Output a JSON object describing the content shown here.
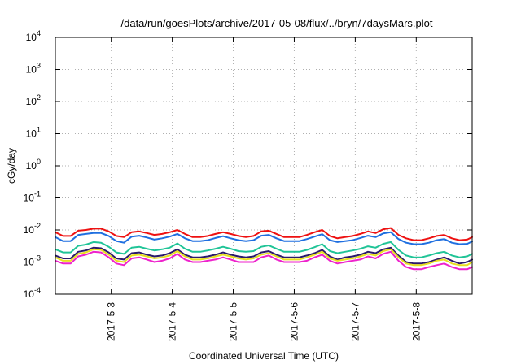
{
  "chart_data": {
    "type": "line",
    "title": "/data/run/goesPlots/archive/2017-05-08/flux/../bryn/7daysMars.plot",
    "xlabel": "Coordinated Universal Time (UTC)",
    "ylabel": "cGy/day",
    "y_scale": "log",
    "ylim": [
      0.0001,
      10000
    ],
    "xlim": [
      "2017-05-02T02:00",
      "2017-05-08T22:00"
    ],
    "grid": true,
    "x_ticks": [
      {
        "value": "2017-05-03T00:00",
        "label": "2017-5-3"
      },
      {
        "value": "2017-05-04T00:00",
        "label": "2017-5-4"
      },
      {
        "value": "2017-05-05T00:00",
        "label": "2017-5-5"
      },
      {
        "value": "2017-05-06T00:00",
        "label": "2017-5-6"
      },
      {
        "value": "2017-05-07T00:00",
        "label": "2017-5-7"
      },
      {
        "value": "2017-05-08T00:00",
        "label": "2017-5-8"
      }
    ],
    "y_ticks": [
      {
        "value": 0.0001,
        "base": "10",
        "exp": "-4"
      },
      {
        "value": 0.001,
        "base": "10",
        "exp": "-3"
      },
      {
        "value": 0.01,
        "base": "10",
        "exp": "-2"
      },
      {
        "value": 0.1,
        "base": "10",
        "exp": "-1"
      },
      {
        "value": 1,
        "base": "10",
        "exp": "0"
      },
      {
        "value": 10,
        "base": "10",
        "exp": "1"
      },
      {
        "value": 100,
        "base": "10",
        "exp": "2"
      },
      {
        "value": 1000,
        "base": "10",
        "exp": "3"
      },
      {
        "value": 10000,
        "base": "10",
        "exp": "4"
      }
    ],
    "x": [
      "2017-05-02T02:00",
      "2017-05-02T05:00",
      "2017-05-02T08:00",
      "2017-05-02T11:00",
      "2017-05-02T14:00",
      "2017-05-02T17:00",
      "2017-05-02T20:00",
      "2017-05-02T23:00",
      "2017-05-03T02:00",
      "2017-05-03T05:00",
      "2017-05-03T08:00",
      "2017-05-03T11:00",
      "2017-05-03T14:00",
      "2017-05-03T17:00",
      "2017-05-03T20:00",
      "2017-05-03T23:00",
      "2017-05-04T02:00",
      "2017-05-04T05:00",
      "2017-05-04T08:00",
      "2017-05-04T11:00",
      "2017-05-04T14:00",
      "2017-05-04T17:00",
      "2017-05-04T20:00",
      "2017-05-04T23:00",
      "2017-05-05T02:00",
      "2017-05-05T05:00",
      "2017-05-05T08:00",
      "2017-05-05T11:00",
      "2017-05-05T14:00",
      "2017-05-05T17:00",
      "2017-05-05T20:00",
      "2017-05-05T23:00",
      "2017-05-06T02:00",
      "2017-05-06T05:00",
      "2017-05-06T08:00",
      "2017-05-06T11:00",
      "2017-05-06T14:00",
      "2017-05-06T17:00",
      "2017-05-06T20:00",
      "2017-05-06T23:00",
      "2017-05-07T02:00",
      "2017-05-07T05:00",
      "2017-05-07T08:00",
      "2017-05-07T11:00",
      "2017-05-07T14:00",
      "2017-05-07T17:00",
      "2017-05-07T20:00",
      "2017-05-07T23:00",
      "2017-05-08T02:00",
      "2017-05-08T05:00",
      "2017-05-08T08:00",
      "2017-05-08T11:00",
      "2017-05-08T14:00",
      "2017-05-08T17:00",
      "2017-05-08T20:00",
      "2017-05-08T22:00"
    ],
    "series": [
      {
        "color": "#ee1111",
        "values": [
          0.0085,
          0.0065,
          0.0065,
          0.0095,
          0.01,
          0.011,
          0.011,
          0.009,
          0.0065,
          0.006,
          0.0085,
          0.009,
          0.008,
          0.007,
          0.0075,
          0.0085,
          0.01,
          0.0075,
          0.006,
          0.006,
          0.0065,
          0.0075,
          0.0085,
          0.0075,
          0.0065,
          0.006,
          0.0065,
          0.009,
          0.0095,
          0.0075,
          0.006,
          0.006,
          0.006,
          0.007,
          0.0085,
          0.01,
          0.0065,
          0.0055,
          0.006,
          0.0065,
          0.0075,
          0.009,
          0.008,
          0.0105,
          0.0115,
          0.007,
          0.0055,
          0.0048,
          0.0048,
          0.0055,
          0.0065,
          0.007,
          0.0055,
          0.0048,
          0.005,
          0.006
        ]
      },
      {
        "color": "#1f6fe0",
        "values": [
          0.006,
          0.0045,
          0.0045,
          0.007,
          0.0075,
          0.008,
          0.008,
          0.0065,
          0.0045,
          0.004,
          0.0062,
          0.0066,
          0.0058,
          0.005,
          0.0055,
          0.0062,
          0.0075,
          0.0055,
          0.0045,
          0.0045,
          0.0048,
          0.0056,
          0.0064,
          0.0055,
          0.0048,
          0.0045,
          0.0048,
          0.0066,
          0.007,
          0.0055,
          0.0045,
          0.0045,
          0.0045,
          0.0052,
          0.0062,
          0.0074,
          0.0048,
          0.0042,
          0.0045,
          0.0048,
          0.0056,
          0.0066,
          0.006,
          0.0078,
          0.0085,
          0.0052,
          0.004,
          0.0036,
          0.0036,
          0.004,
          0.0048,
          0.0052,
          0.004,
          0.0036,
          0.0037,
          0.0044
        ]
      },
      {
        "color": "#20c497",
        "values": [
          0.0025,
          0.002,
          0.002,
          0.0032,
          0.0035,
          0.0042,
          0.004,
          0.003,
          0.002,
          0.0018,
          0.0028,
          0.003,
          0.0026,
          0.0023,
          0.0025,
          0.0028,
          0.0038,
          0.0026,
          0.0021,
          0.0021,
          0.0023,
          0.0026,
          0.003,
          0.0026,
          0.0022,
          0.0021,
          0.0022,
          0.003,
          0.0033,
          0.0026,
          0.0021,
          0.0021,
          0.0021,
          0.0024,
          0.0029,
          0.0036,
          0.0022,
          0.0019,
          0.0021,
          0.0023,
          0.0026,
          0.0031,
          0.0028,
          0.0037,
          0.0042,
          0.0024,
          0.0016,
          0.0014,
          0.0014,
          0.0016,
          0.0019,
          0.0021,
          0.0016,
          0.0014,
          0.0015,
          0.0018
        ]
      },
      {
        "color": "#2b1a6b",
        "values": [
          0.0016,
          0.0013,
          0.0013,
          0.0021,
          0.0023,
          0.0028,
          0.0027,
          0.002,
          0.0013,
          0.0012,
          0.0019,
          0.002,
          0.0017,
          0.0015,
          0.0016,
          0.0019,
          0.0025,
          0.0017,
          0.0014,
          0.0014,
          0.0015,
          0.0017,
          0.002,
          0.0017,
          0.0015,
          0.0014,
          0.0015,
          0.002,
          0.0022,
          0.0017,
          0.0014,
          0.0014,
          0.0014,
          0.0016,
          0.0019,
          0.0024,
          0.0015,
          0.0012,
          0.0014,
          0.0015,
          0.0017,
          0.0021,
          0.0019,
          0.0025,
          0.0028,
          0.0016,
          0.001,
          0.0009,
          0.0009,
          0.001,
          0.0012,
          0.0014,
          0.0011,
          0.0009,
          0.001,
          0.0012
        ]
      },
      {
        "color": "#e8e020",
        "values": [
          0.0014,
          0.0011,
          0.0011,
          0.0018,
          0.002,
          0.0025,
          0.0024,
          0.0017,
          0.0011,
          0.001,
          0.0016,
          0.0017,
          0.0015,
          0.0013,
          0.0014,
          0.0016,
          0.0022,
          0.0015,
          0.0012,
          0.0012,
          0.0013,
          0.0015,
          0.0017,
          0.0015,
          0.0013,
          0.0012,
          0.0013,
          0.0017,
          0.0019,
          0.0015,
          0.0012,
          0.0012,
          0.0012,
          0.0014,
          0.0017,
          0.0021,
          0.0013,
          0.0011,
          0.0012,
          0.0013,
          0.0015,
          0.0018,
          0.0016,
          0.0022,
          0.0025,
          0.0014,
          0.0009,
          0.0008,
          0.0008,
          0.0009,
          0.0011,
          0.0012,
          0.0009,
          0.0008,
          0.0008,
          0.001
        ]
      },
      {
        "color": "#ee22cc",
        "values": [
          0.0011,
          0.0009,
          0.0009,
          0.0015,
          0.0017,
          0.0021,
          0.002,
          0.0014,
          0.0009,
          0.0008,
          0.0013,
          0.0014,
          0.0012,
          0.001,
          0.0011,
          0.0013,
          0.0018,
          0.0012,
          0.001,
          0.001,
          0.0011,
          0.0012,
          0.0014,
          0.0012,
          0.001,
          0.001,
          0.001,
          0.0014,
          0.0016,
          0.0012,
          0.001,
          0.001,
          0.001,
          0.0011,
          0.0014,
          0.0017,
          0.0011,
          0.0009,
          0.001,
          0.0011,
          0.0012,
          0.0015,
          0.0013,
          0.0018,
          0.0021,
          0.0011,
          0.0007,
          0.0006,
          0.0006,
          0.0007,
          0.0008,
          0.0009,
          0.0007,
          0.0006,
          0.0006,
          0.0007
        ]
      }
    ]
  }
}
